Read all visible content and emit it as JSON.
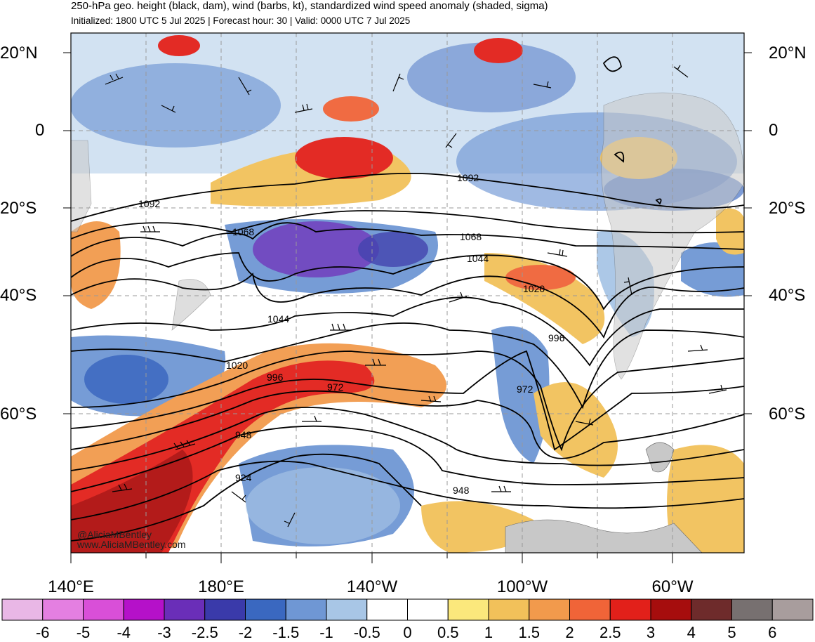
{
  "header": {
    "title": "250-hPa geo. height (black, dam), wind (barbs, kt), standardized wind speed anomaly (shaded, sigma)",
    "subtitle": "Initialized: 1800 UTC 5 Jul 2025 | Forecast hour: 30 | Valid: 0000 UTC 7 Jul 2025"
  },
  "axes": {
    "lat_left": [
      "20°N",
      "0",
      "20°S",
      "40°S",
      "60°S"
    ],
    "lat_right": [
      "20°N",
      "0",
      "20°S",
      "40°S",
      "60°S"
    ],
    "lon": [
      "140°E",
      "180°E",
      "140°W",
      "100°W",
      "60°W"
    ]
  },
  "contour_labels": [
    "1092",
    "1092",
    "1068",
    "1068",
    "1044",
    "1044",
    "1020",
    "1020",
    "996",
    "996",
    "972",
    "972",
    "948",
    "948",
    "924"
  ],
  "credits": {
    "handle": "@AliciaMBentley",
    "site": "www.AliciaMBentley.com"
  },
  "colorbar": {
    "labels": [
      "-6",
      "-5",
      "-4",
      "-3",
      "-2.5",
      "-2",
      "-1.5",
      "-1",
      "-0.5",
      "0",
      "0.5",
      "1",
      "1.5",
      "2",
      "2.5",
      "3",
      "4",
      "5",
      "6"
    ],
    "colors": [
      "#e9b7e6",
      "#e47fe1",
      "#d94fd8",
      "#b511c9",
      "#6a2eb8",
      "#3a3aaa",
      "#3a68c0",
      "#6f97d4",
      "#a8c6e6",
      "#ffffff",
      "#ffffff",
      "#fbe87c",
      "#f2c15a",
      "#f29a4c",
      "#f06438",
      "#e2201a",
      "#a60d0d",
      "#6e2b2b",
      "#777070",
      "#a89d9d"
    ]
  }
}
